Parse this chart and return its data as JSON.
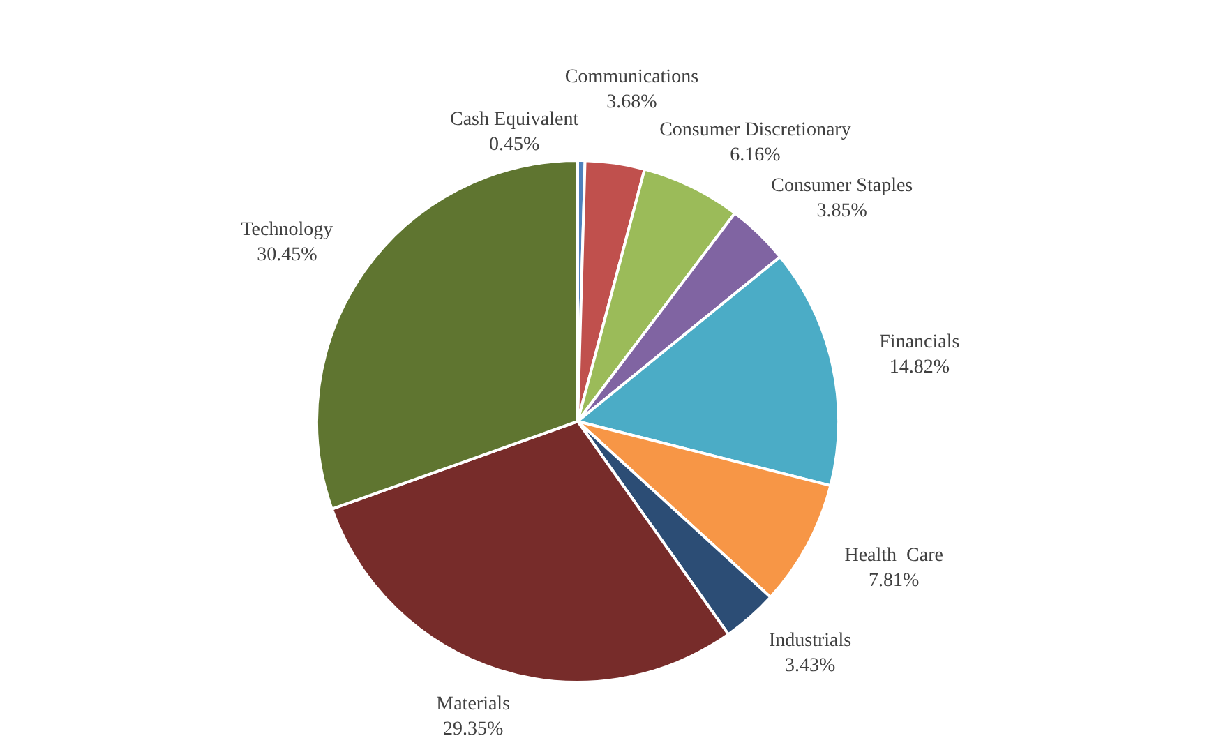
{
  "chart_data": {
    "type": "pie",
    "categories": [
      "Cash Equivalent",
      "Communications",
      "Consumer Discretionary",
      "Consumer Staples",
      "Financials",
      "Health  Care",
      "Industrials",
      "Materials",
      "Technology"
    ],
    "values": [
      0.45,
      3.68,
      6.16,
      3.85,
      14.82,
      7.81,
      3.43,
      29.35,
      30.45
    ],
    "colors": [
      "#4f81bd",
      "#c0504d",
      "#9bbb59",
      "#8064a2",
      "#4bacc6",
      "#f79646",
      "#2c4d75",
      "#772c2a",
      "#5f7530"
    ],
    "value_labels": [
      "0.45%",
      "3.68%",
      "6.16%",
      "3.85%",
      "14.82%",
      "7.81%",
      "3.43%",
      "29.35%",
      "30.45%"
    ],
    "data_labels": true,
    "legend": false
  }
}
